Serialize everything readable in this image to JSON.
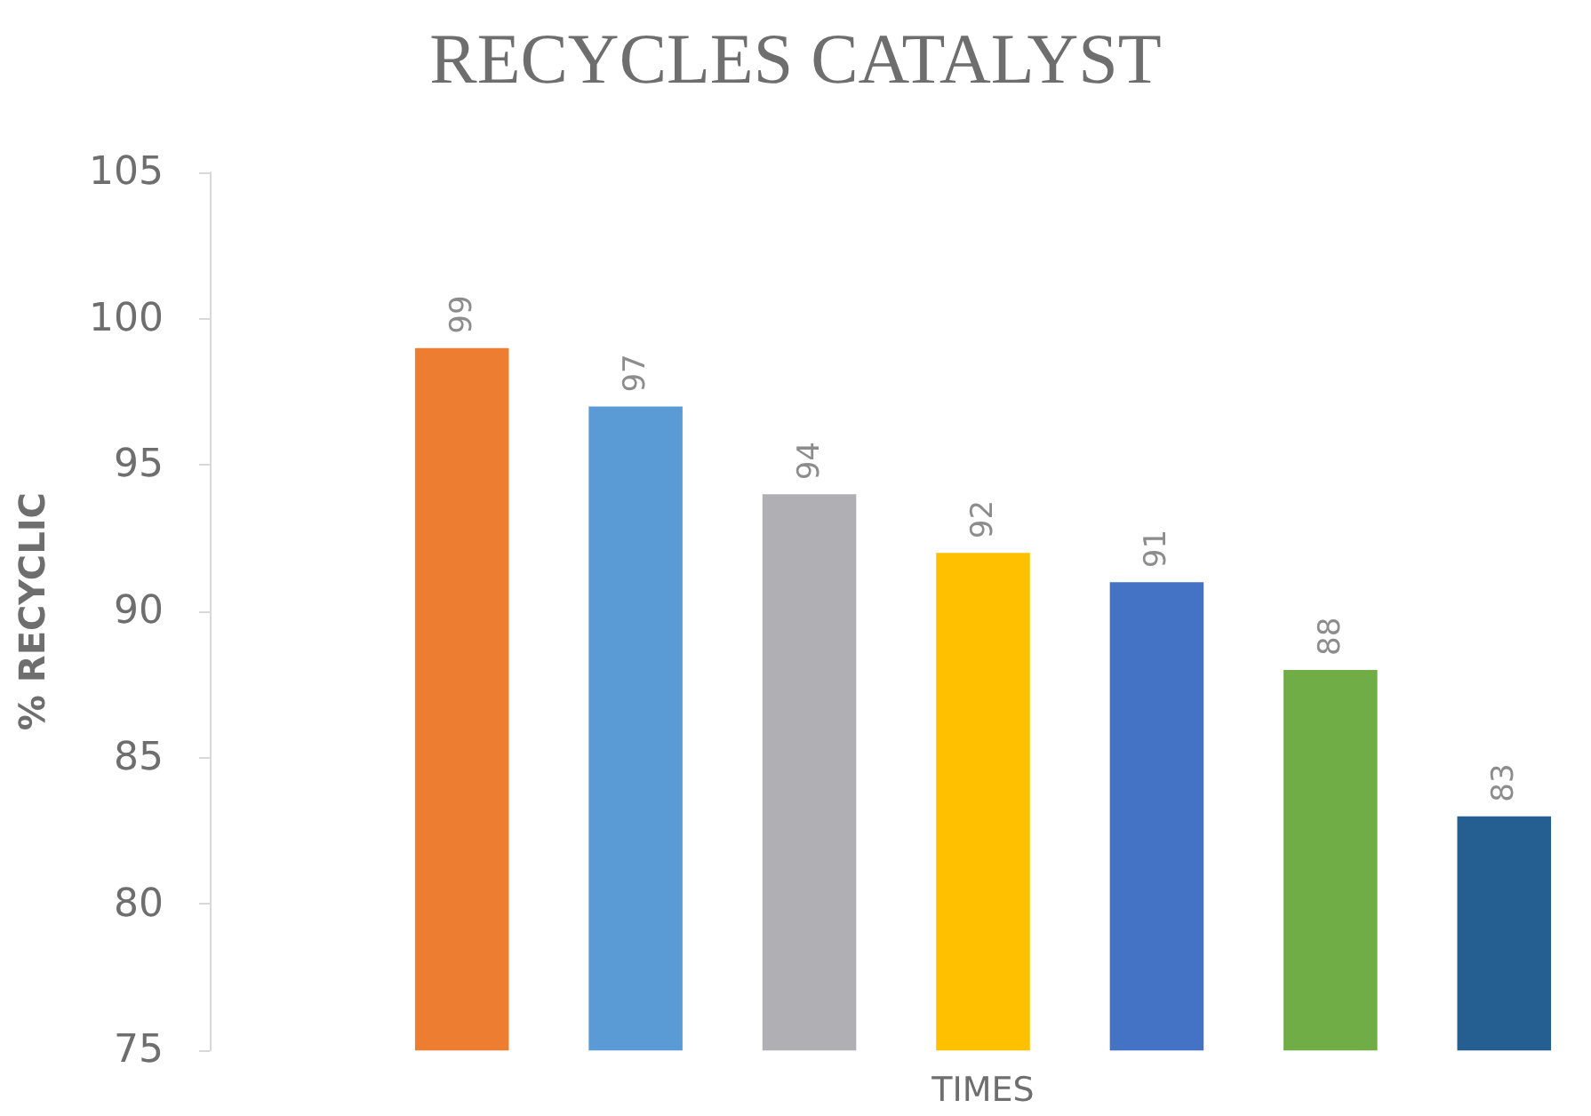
{
  "chart_data": {
    "type": "bar",
    "title": "RECYCLES CATALYST",
    "xlabel": "TIMES",
    "ylabel": "% RECYCLIC",
    "categories": [
      null,
      null,
      null,
      null,
      null,
      null,
      null
    ],
    "values": [
      99,
      97,
      94,
      92,
      91,
      88,
      83
    ],
    "colors": [
      "#ed7d31",
      "#5b9bd5",
      "#b0b0b4",
      "#ffc000",
      "#4472c4",
      "#70ad47",
      "#255e91"
    ],
    "ylim": [
      75,
      105
    ],
    "yticks": [
      75,
      80,
      85,
      90,
      95,
      100,
      105
    ],
    "grid": false,
    "data_labels": true
  }
}
